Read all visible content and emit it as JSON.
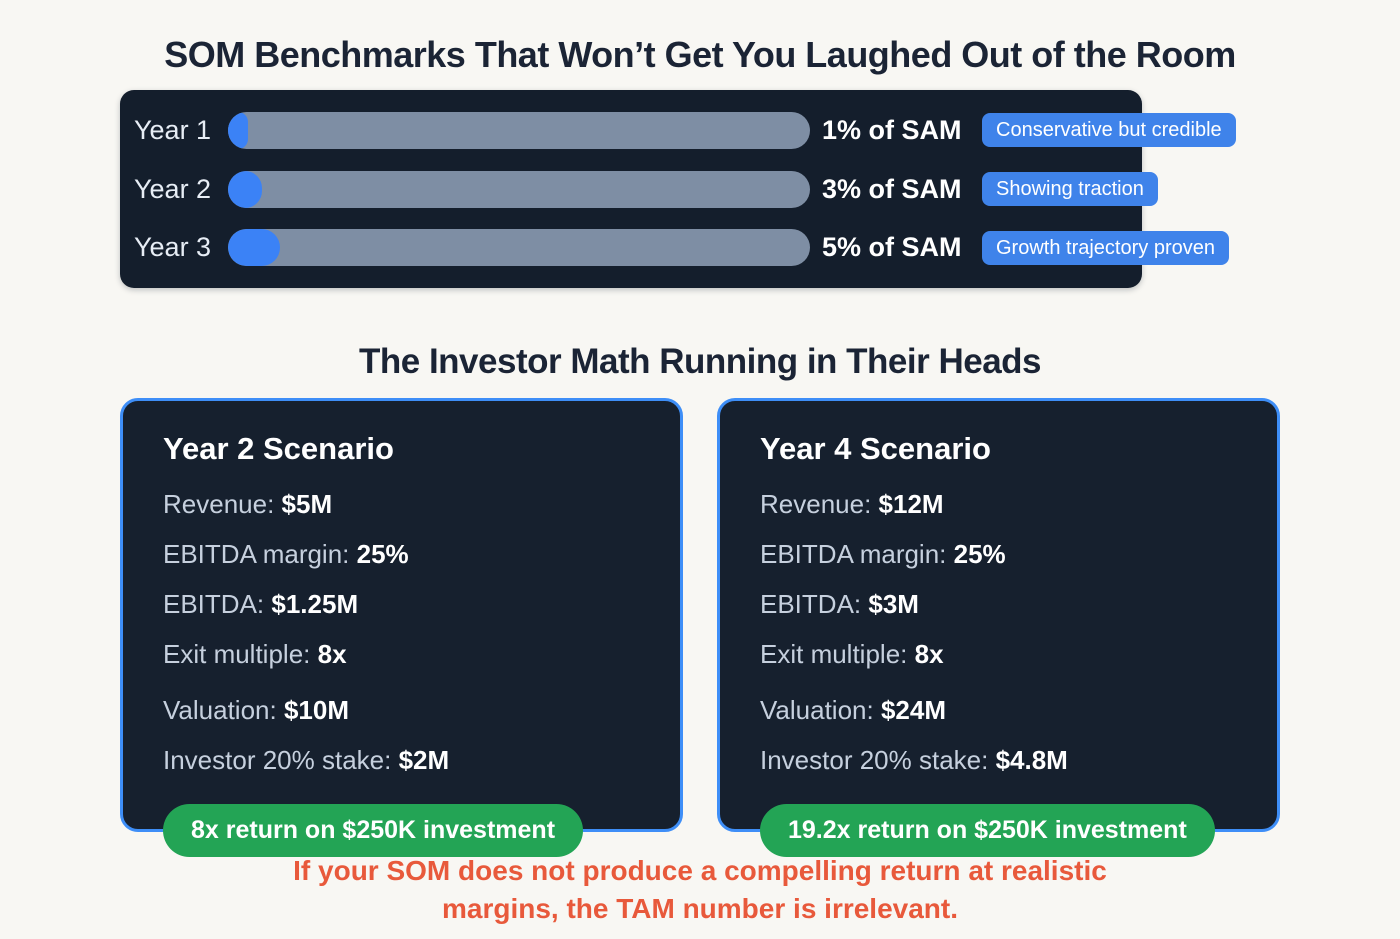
{
  "page": {
    "title1": "SOM Benchmarks That Won’t Get You Laughed Out of the Room",
    "title2": "The Investor Math Running in Their Heads",
    "footer_line1": "If your SOM does not produce a compelling return at realistic",
    "footer_line2": "margins, the TAM number is irrelevant."
  },
  "benchmarks": {
    "rows": [
      {
        "label": "Year 1",
        "value": "1% of SAM",
        "badge": "Conservative but credible",
        "fill_style": "width:20px"
      },
      {
        "label": "Year 2",
        "value": "3% of SAM",
        "badge": "Showing traction",
        "fill_style": "width:34px"
      },
      {
        "label": "Year 3",
        "value": "5% of SAM",
        "badge": "Growth trajectory proven",
        "fill_style": "width:52px"
      }
    ]
  },
  "chart_data": {
    "type": "bar",
    "categories": [
      "Year 1",
      "Year 2",
      "Year 3"
    ],
    "values": [
      1,
      3,
      5
    ],
    "title": "SOM Benchmarks That Won’t Get You Laughed Out of the Room",
    "xlabel": "",
    "ylabel": "% of SAM",
    "annotations": [
      "Conservative but credible",
      "Showing traction",
      "Growth trajectory proven"
    ]
  },
  "scenarios": [
    {
      "title": "Year 2 Scenario",
      "lines": [
        {
          "label": "Revenue:",
          "value": "$5M"
        },
        {
          "label": "EBITDA margin:",
          "value": "25%"
        },
        {
          "label": "EBITDA:",
          "value": "$1.25M"
        },
        {
          "label": "Exit multiple:",
          "value": "8x"
        },
        {
          "label": "Valuation:",
          "value": "$10M"
        },
        {
          "label": "Investor 20% stake:",
          "value": "$2M"
        }
      ],
      "highlight": "8x return on $250K investment"
    },
    {
      "title": "Year 4 Scenario",
      "lines": [
        {
          "label": "Revenue:",
          "value": "$12M"
        },
        {
          "label": "EBITDA margin:",
          "value": "25%"
        },
        {
          "label": "EBITDA:",
          "value": "$3M"
        },
        {
          "label": "Exit multiple:",
          "value": "8x"
        },
        {
          "label": "Valuation:",
          "value": "$24M"
        },
        {
          "label": "Investor 20% stake:",
          "value": "$4.8M"
        }
      ],
      "highlight": "19.2x return on $250K investment"
    }
  ],
  "colors": {
    "page_bg": "#f8f7f3",
    "panel_bg": "#141e2c",
    "card_bg": "#16202e",
    "accent_blue": "#3b82f6",
    "badge_blue": "#3f83ea",
    "card_border_blue": "#3e8ef7",
    "bar_track_gray": "#7e8ea4",
    "success_green": "#23a455",
    "warning_red": "#e8593b",
    "title_navy": "#1b2435"
  }
}
